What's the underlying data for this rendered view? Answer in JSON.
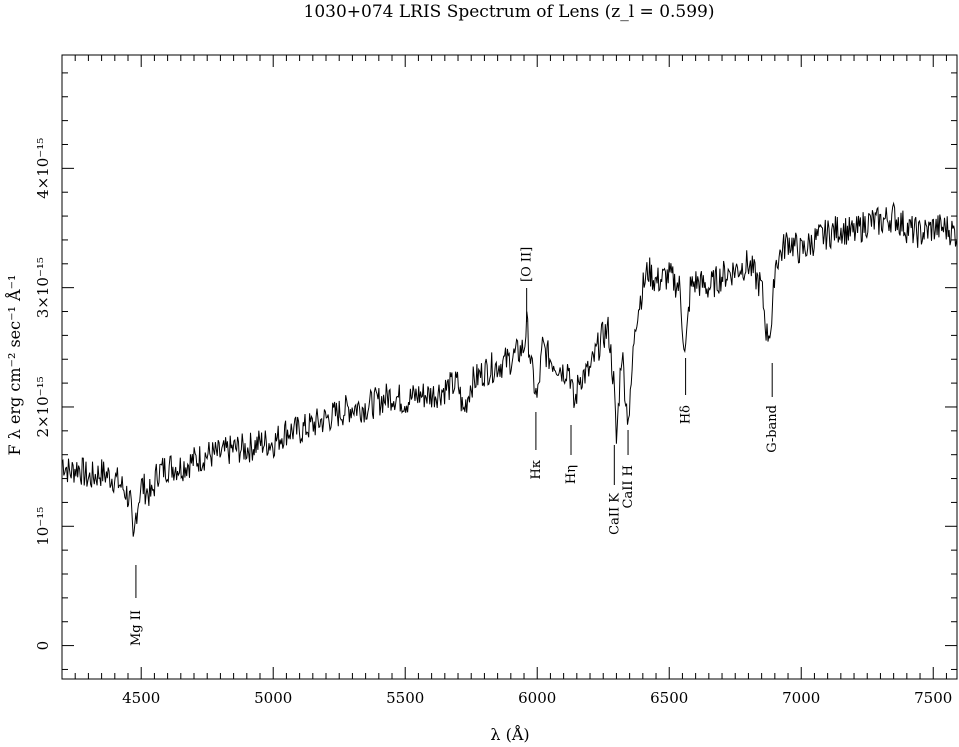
{
  "chart_data": {
    "type": "line",
    "title": "1030+074 LRIS Spectrum of Lens (z_l = 0.599)",
    "xlabel": "λ (Å)",
    "ylabel": "F λ  erg cm⁻² sec⁻¹ Å⁻¹",
    "xlim": [
      4200,
      7590
    ],
    "ylim": [
      -2.8e-16,
      4.95e-15
    ],
    "x_ticks": [
      4500,
      5000,
      5500,
      6000,
      6500,
      7000,
      7500
    ],
    "x_tick_labels": [
      "4500",
      "5000",
      "5500",
      "6000",
      "6500",
      "7000",
      "7500"
    ],
    "y_ticks": [
      0,
      1e-15,
      2e-15,
      3e-15,
      4e-15
    ],
    "y_tick_labels": [
      "0",
      "10⁻¹⁵",
      "2×10⁻¹⁵",
      "3×10⁻¹⁵",
      "4×10⁻¹⁵"
    ],
    "grid": false,
    "series": [
      {
        "x": [
          4200,
          4230,
          4260,
          4300,
          4350,
          4400,
          4440,
          4460,
          4470,
          4480,
          4500,
          4540,
          4560,
          4600,
          4650,
          4700,
          4750,
          4800,
          4850,
          4900,
          4950,
          5000,
          5050,
          5100,
          5150,
          5200,
          5250,
          5300,
          5350,
          5400,
          5450,
          5500,
          5550,
          5600,
          5650,
          5700,
          5720,
          5750,
          5800,
          5850,
          5900,
          5950,
          5960,
          5980,
          6000,
          6020,
          6050,
          6080,
          6100,
          6120,
          6140,
          6160,
          6200,
          6230,
          6250,
          6270,
          6290,
          6300,
          6310,
          6320,
          6340,
          6350,
          6370,
          6400,
          6420,
          6450,
          6500,
          6540,
          6560,
          6580,
          6600,
          6650,
          6700,
          6750,
          6800,
          6850,
          6870,
          6890,
          6900,
          6950,
          7000,
          7050,
          7100,
          7150,
          7200,
          7250,
          7300,
          7350,
          7400,
          7450,
          7500,
          7550,
          7590
        ],
        "y": [
          1.55e-15,
          1.45e-15,
          1.5e-15,
          1.4e-15,
          1.45e-15,
          1.4e-15,
          1.3e-15,
          1.2e-15,
          8e-16,
          1.1e-15,
          1.35e-15,
          1.25e-15,
          1.45e-15,
          1.5e-15,
          1.5e-15,
          1.55e-15,
          1.6e-15,
          1.6e-15,
          1.65e-15,
          1.65e-15,
          1.7e-15,
          1.7e-15,
          1.8e-15,
          1.8e-15,
          1.85e-15,
          1.9e-15,
          1.95e-15,
          2e-15,
          2e-15,
          2.05e-15,
          2.1e-15,
          2.05e-15,
          2.1e-15,
          2.1e-15,
          2.15e-15,
          2.2e-15,
          1.95e-15,
          2.2e-15,
          2.3e-15,
          2.35e-15,
          2.4e-15,
          2.5e-15,
          2.7e-15,
          2.3e-15,
          2.05e-15,
          2.5e-15,
          2.4e-15,
          2.35e-15,
          2.3e-15,
          2.35e-15,
          2e-15,
          2.25e-15,
          2.3e-15,
          2.5e-15,
          2.6e-15,
          2.65e-15,
          2.2e-15,
          1.7e-15,
          2.1e-15,
          2.5e-15,
          1.95e-15,
          1.95e-15,
          2.7e-15,
          3e-15,
          3.15e-15,
          3.05e-15,
          3.1e-15,
          3e-15,
          2.4e-15,
          3e-15,
          3.05e-15,
          3e-15,
          3.1e-15,
          3.15e-15,
          3.2e-15,
          3e-15,
          2.6e-15,
          2.7e-15,
          3.2e-15,
          3.4e-15,
          3.3e-15,
          3.4e-15,
          3.45e-15,
          3.5e-15,
          3.45e-15,
          3.55e-15,
          3.55e-15,
          3.6e-15,
          3.5e-15,
          3.45e-15,
          3.5e-15,
          3.5e-15,
          3.45e-15
        ]
      }
    ],
    "annotations": [
      {
        "label": "Mg II",
        "x": 4480
      },
      {
        "label": "[O II]",
        "x": 5960
      },
      {
        "label": "Hκ",
        "x": 5995
      },
      {
        "label": "Hη",
        "x": 6128
      },
      {
        "label": "CaII K",
        "x": 6292
      },
      {
        "label": "CaII H",
        "x": 6344
      },
      {
        "label": "Hδ",
        "x": 6562
      },
      {
        "label": "G-band",
        "x": 6890
      }
    ]
  }
}
